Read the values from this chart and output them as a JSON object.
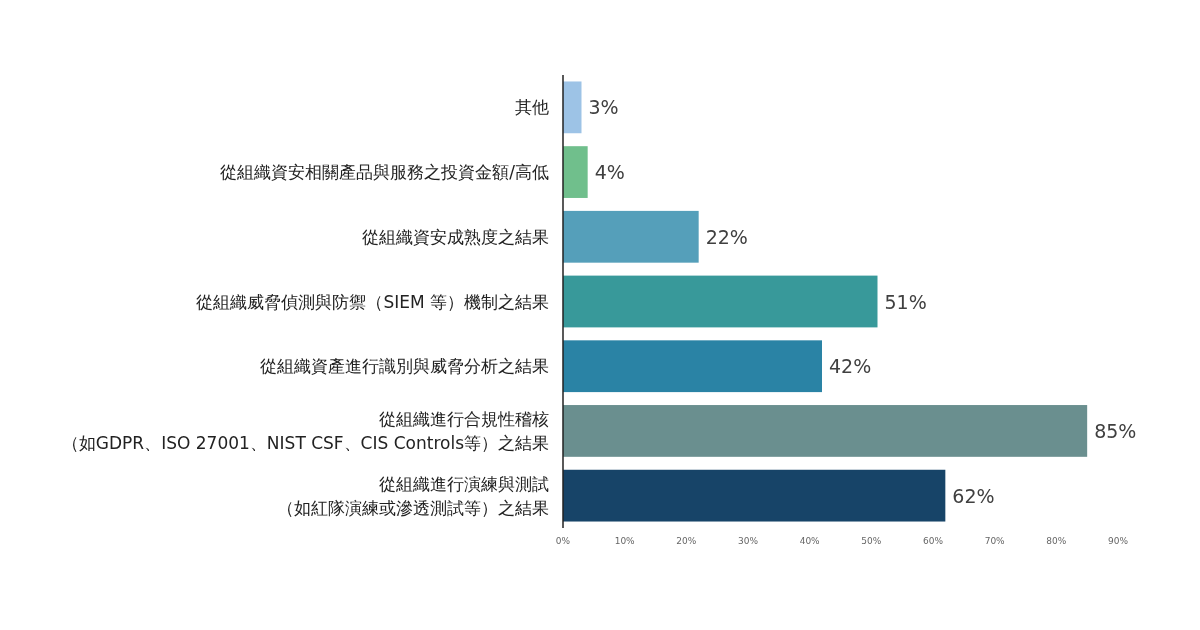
{
  "chart_data": {
    "type": "bar",
    "orientation": "horizontal",
    "categories": [
      "其他",
      "從組織資安相關產品與服務之投資金額/高低",
      "從組織資安成熟度之結果",
      "從組織威脅偵測與防禦（SIEM 等）機制之結果",
      "從組織資產進行識別與威脅分析之結果",
      "從組織進行合規性稽核（如GDPR、ISO 27001、NIST CSF、CIS Controls等）之結果",
      "從組織進行演練與測試（如紅隊演練或滲透測試等）之結果"
    ],
    "values": [
      3,
      4,
      22,
      51,
      42,
      85,
      62
    ],
    "colors": [
      "#9dc3e6",
      "#70bf8c",
      "#559fba",
      "#38999a",
      "#2a83a5",
      "#6a8f8f",
      "#174468"
    ],
    "value_labels": [
      "3%",
      "4%",
      "22%",
      "51%",
      "42%",
      "85%",
      "62%"
    ],
    "xlim": [
      0,
      90
    ],
    "xticks": [
      {
        "value": 0,
        "label": "0%"
      },
      {
        "value": 10,
        "label": "10%"
      },
      {
        "value": 20,
        "label": "20%"
      },
      {
        "value": 30,
        "label": "30%"
      },
      {
        "value": 40,
        "label": "40%"
      },
      {
        "value": 50,
        "label": "50%"
      },
      {
        "value": 60,
        "label": "60%"
      },
      {
        "value": 70,
        "label": "70%"
      },
      {
        "value": 80,
        "label": "80%"
      },
      {
        "value": 90,
        "label": "90%"
      }
    ]
  }
}
